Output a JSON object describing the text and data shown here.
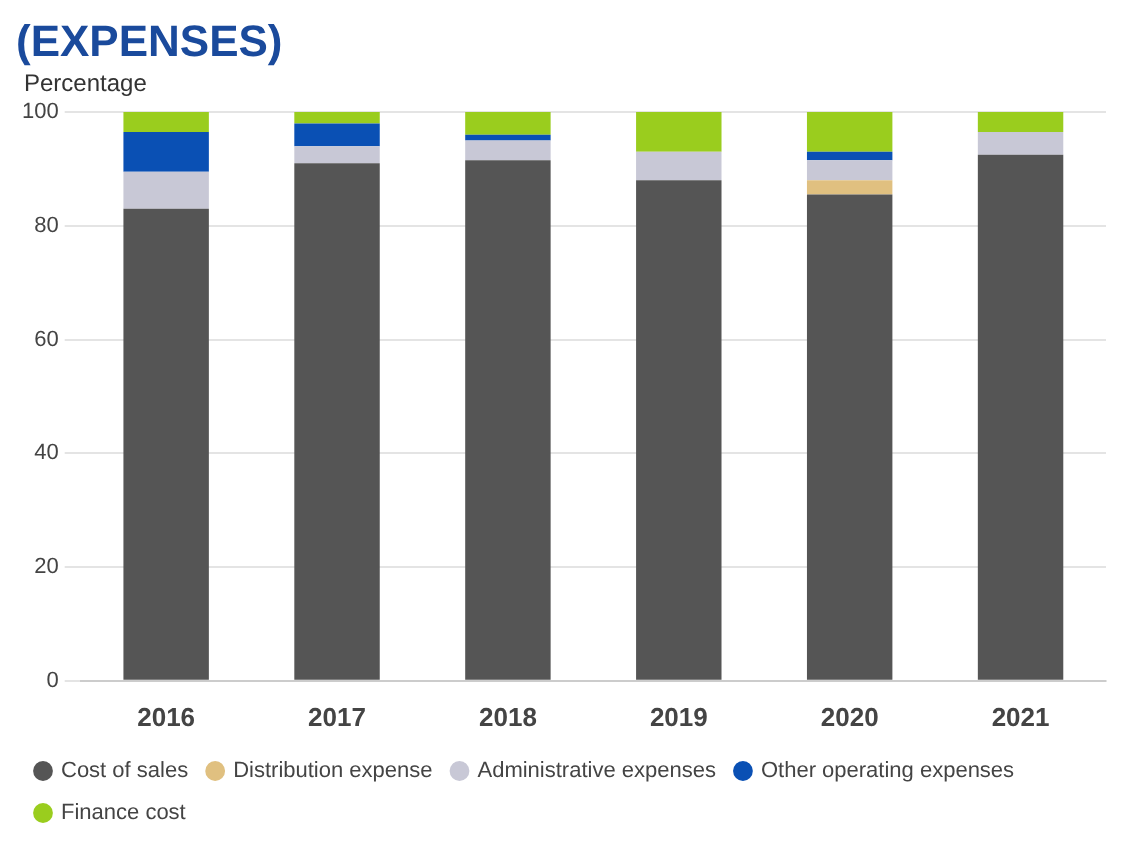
{
  "chart_data": {
    "type": "bar",
    "title": "(EXPENSES)",
    "ylabel": "Percentage",
    "stacked": true,
    "categories": [
      "2016",
      "2017",
      "2018",
      "2019",
      "2020",
      "2021"
    ],
    "series": [
      {
        "name": "Cost of sales",
        "color": "#555555",
        "values": [
          83,
          91,
          91.5,
          88,
          85.5,
          92.5
        ]
      },
      {
        "name": "Distribution expense",
        "color": "#e0c080",
        "values": [
          0,
          0,
          0,
          0,
          2.5,
          0
        ]
      },
      {
        "name": "Administrative expenses",
        "color": "#c8c8d6",
        "values": [
          6.5,
          3,
          3.5,
          5,
          3.5,
          4
        ]
      },
      {
        "name": "Other operating expenses",
        "color": "#0a50b4",
        "values": [
          7,
          4,
          1,
          0,
          1.5,
          0
        ]
      },
      {
        "name": "Finance cost",
        "color": "#9acd1e",
        "values": [
          3.5,
          2,
          4,
          7,
          7,
          3.5
        ]
      }
    ],
    "ylim": [
      0,
      100
    ],
    "yticks": [
      0,
      20,
      40,
      60,
      80,
      100
    ],
    "grid": "y",
    "legend": "bottom"
  }
}
